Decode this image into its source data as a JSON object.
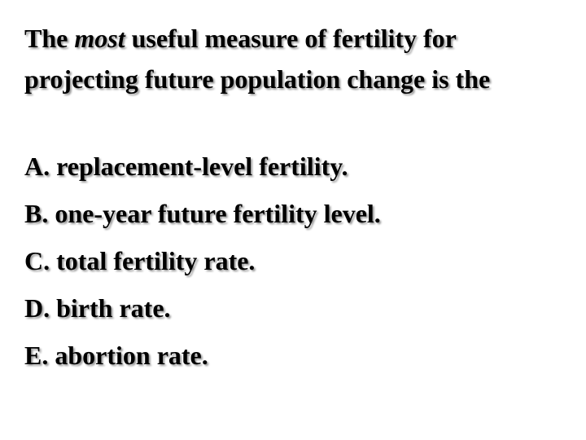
{
  "question": {
    "lead": "The",
    "emphasis": "most",
    "rest": "useful measure of fertility for projecting future population change is the"
  },
  "options": [
    "A. replacement-level fertility.",
    "B. one-year future fertility level.",
    "C. total fertility rate.",
    "D. birth rate.",
    "E. abortion rate."
  ]
}
